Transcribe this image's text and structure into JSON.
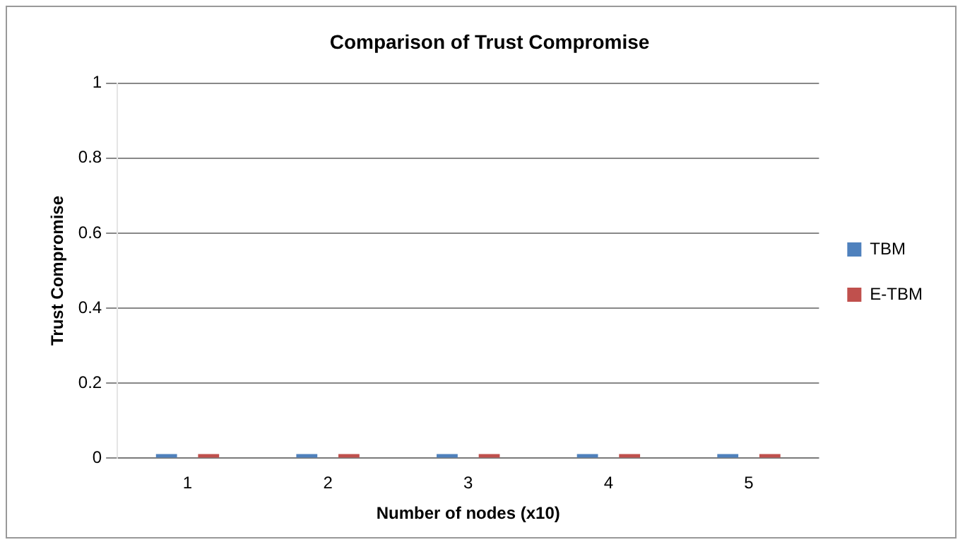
{
  "chart_data": {
    "type": "bar",
    "title": "Comparison of Trust Compromise",
    "xlabel": "Number of nodes (x10)",
    "ylabel": "Trust Compromise",
    "categories": [
      "1",
      "2",
      "3",
      "4",
      "5"
    ],
    "series": [
      {
        "name": "TBM",
        "color": "#4f81bd",
        "values": [
          0,
          0,
          0,
          0,
          0
        ]
      },
      {
        "name": "E-TBM",
        "color": "#c0504d",
        "values": [
          0,
          0,
          0,
          0,
          0
        ]
      }
    ],
    "ylim": [
      0,
      1
    ],
    "yticks": [
      0,
      0.2,
      0.4,
      0.6,
      0.8,
      1
    ],
    "grid": "y",
    "legend": "right"
  }
}
